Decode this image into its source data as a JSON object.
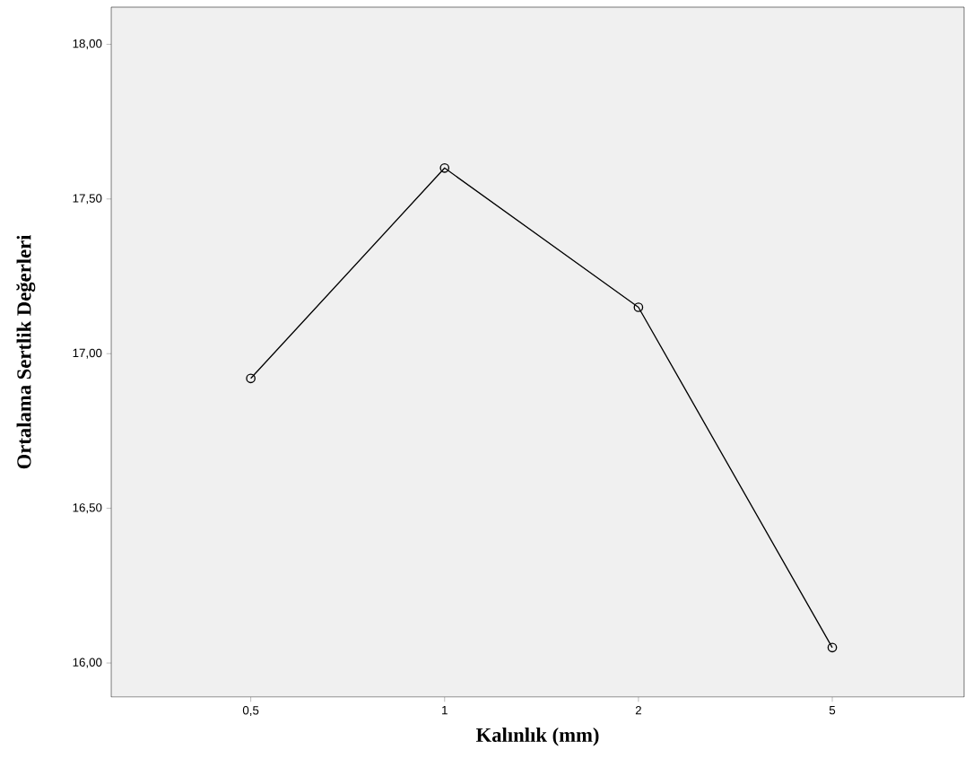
{
  "chart_data": {
    "type": "line",
    "xlabel": "Kalınlık (mm)",
    "ylabel": "Ortalama Sertlik Değerleri",
    "categories": [
      "0,5",
      "1",
      "2",
      "5"
    ],
    "values": [
      16.92,
      17.6,
      17.15,
      16.05
    ],
    "color": "#000000",
    "marker": "circle",
    "ylim": [
      15.89,
      18.12
    ],
    "yticks": [
      {
        "value": 16,
        "label": "16,00"
      },
      {
        "value": 16.5,
        "label": "16,50"
      },
      {
        "value": 17,
        "label": "17,00"
      },
      {
        "value": 17.5,
        "label": "17,50"
      },
      {
        "value": 18,
        "label": "18,00"
      }
    ]
  }
}
